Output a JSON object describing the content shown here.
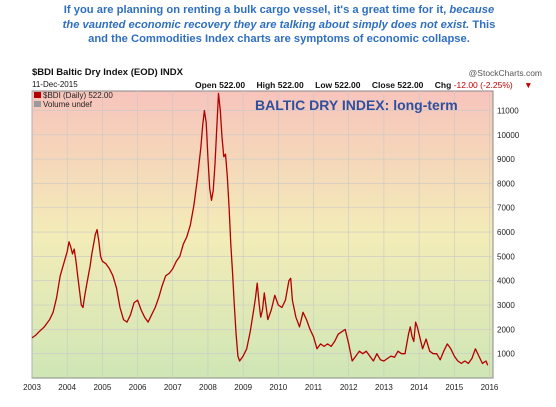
{
  "caption": {
    "line1": "If you are planning on renting a bulk cargo vessel, it's a great time for it, ",
    "line1_italic": "because",
    "line2_italic": "the vaunted economic recovery they are talking about simply does not exist.",
    "line2_tail": " This",
    "line3": "and the Commodities Index charts are symptoms of economic collapse."
  },
  "header": {
    "symbol": "$BDI Baltic Dry Index (EOD) INDX",
    "date": "11-Dec-2015",
    "source": "@StockCharts.com",
    "open_label": "Open",
    "open": "522.00",
    "high_label": "High",
    "high": "522.00",
    "low_label": "Low",
    "low": "522.00",
    "close_label": "Close",
    "close": "522.00",
    "chg_label": "Chg",
    "chg": "-12.00 (-2.25%)",
    "chg_arrow": "▼"
  },
  "colors": {
    "line": "#b30000",
    "title": "#2f4f9f",
    "caption": "#2f6fc0",
    "bg_top": "#f7c4bc",
    "bg_mid": "#f3ecb8",
    "bg_bottom": "#cfe6b5"
  },
  "chart_data": {
    "type": "line",
    "title": "BALTIC DRY INDEX: long-term",
    "legend": [
      {
        "label": "$BDI (Daily) 522.00",
        "color": "#b30000"
      },
      {
        "label": "Volume undef",
        "color": "#9a9a9a"
      }
    ],
    "x_ticks": [
      "2003",
      "2004",
      "2005",
      "2006",
      "2007",
      "2008",
      "2009",
      "2010",
      "2011",
      "2012",
      "2013",
      "2014",
      "2015",
      "2016"
    ],
    "y_ticks": [
      1000,
      2000,
      3000,
      4000,
      5000,
      6000,
      7000,
      8000,
      9000,
      10000,
      11000
    ],
    "xlim": [
      2003.0,
      2016.1
    ],
    "ylim": [
      0,
      11800
    ],
    "grid": true,
    "series": [
      {
        "name": "$BDI (Daily)",
        "x": [
          2003.0,
          2003.1,
          2003.2,
          2003.35,
          2003.5,
          2003.6,
          2003.7,
          2003.8,
          2003.9,
          2004.0,
          2004.05,
          2004.1,
          2004.15,
          2004.2,
          2004.25,
          2004.3,
          2004.35,
          2004.4,
          2004.45,
          2004.5,
          2004.55,
          2004.6,
          2004.65,
          2004.7,
          2004.75,
          2004.8,
          2004.85,
          2004.9,
          2004.95,
          2005.0,
          2005.1,
          2005.2,
          2005.3,
          2005.4,
          2005.5,
          2005.6,
          2005.7,
          2005.8,
          2005.9,
          2006.0,
          2006.1,
          2006.2,
          2006.3,
          2006.4,
          2006.5,
          2006.6,
          2006.7,
          2006.8,
          2006.9,
          2007.0,
          2007.1,
          2007.2,
          2007.3,
          2007.4,
          2007.5,
          2007.6,
          2007.7,
          2007.8,
          2007.85,
          2007.9,
          2007.95,
          2008.0,
          2008.05,
          2008.1,
          2008.15,
          2008.2,
          2008.25,
          2008.3,
          2008.35,
          2008.4,
          2008.45,
          2008.5,
          2008.55,
          2008.6,
          2008.65,
          2008.7,
          2008.75,
          2008.8,
          2008.85,
          2008.9,
          2008.95,
          2009.0,
          2009.1,
          2009.2,
          2009.3,
          2009.35,
          2009.4,
          2009.45,
          2009.5,
          2009.55,
          2009.6,
          2009.7,
          2009.8,
          2009.9,
          2010.0,
          2010.1,
          2010.2,
          2010.3,
          2010.35,
          2010.4,
          2010.5,
          2010.6,
          2010.7,
          2010.8,
          2010.9,
          2011.0,
          2011.1,
          2011.2,
          2011.3,
          2011.4,
          2011.5,
          2011.6,
          2011.7,
          2011.8,
          2011.9,
          2012.0,
          2012.1,
          2012.2,
          2012.3,
          2012.4,
          2012.5,
          2012.6,
          2012.7,
          2012.8,
          2012.9,
          2013.0,
          2013.1,
          2013.2,
          2013.3,
          2013.4,
          2013.5,
          2013.6,
          2013.7,
          2013.75,
          2013.8,
          2013.85,
          2013.9,
          2013.95,
          2014.0,
          2014.1,
          2014.2,
          2014.3,
          2014.4,
          2014.5,
          2014.6,
          2014.7,
          2014.8,
          2014.9,
          2015.0,
          2015.1,
          2015.2,
          2015.3,
          2015.4,
          2015.5,
          2015.6,
          2015.7,
          2015.8,
          2015.9,
          2015.95
        ],
        "y": [
          1650,
          1750,
          1900,
          2100,
          2400,
          2700,
          3300,
          4200,
          4700,
          5200,
          5600,
          5400,
          5100,
          5300,
          4800,
          4200,
          3600,
          3000,
          2900,
          3400,
          3800,
          4200,
          4600,
          5100,
          5500,
          5900,
          6100,
          5600,
          5000,
          4800,
          4700,
          4500,
          4200,
          3700,
          2900,
          2400,
          2300,
          2600,
          3100,
          3200,
          2800,
          2500,
          2300,
          2600,
          2900,
          3300,
          3800,
          4200,
          4300,
          4500,
          4800,
          5000,
          5500,
          5800,
          6300,
          7100,
          8200,
          9500,
          10400,
          11000,
          10500,
          9000,
          7800,
          7300,
          7700,
          8800,
          10300,
          11700,
          11000,
          9900,
          9100,
          9200,
          8300,
          7000,
          5500,
          4300,
          3000,
          1800,
          900,
          700,
          800,
          900,
          1200,
          1900,
          2800,
          3300,
          3900,
          3100,
          2500,
          2800,
          3500,
          2400,
          2800,
          3400,
          3000,
          2900,
          3200,
          4000,
          4100,
          3200,
          2500,
          2100,
          2700,
          2400,
          2000,
          1700,
          1200,
          1400,
          1300,
          1400,
          1300,
          1500,
          1800,
          1900,
          2000,
          1400,
          700,
          900,
          1100,
          1000,
          1100,
          900,
          700,
          1000,
          750,
          700,
          800,
          900,
          850,
          1100,
          1000,
          1000,
          1800,
          2100,
          1700,
          1500,
          2300,
          2100,
          1800,
          1200,
          1600,
          1100,
          1000,
          1000,
          750,
          1100,
          1400,
          1200,
          900,
          700,
          600,
          700,
          600,
          800,
          1200,
          900,
          600,
          700,
          522
        ]
      }
    ]
  }
}
